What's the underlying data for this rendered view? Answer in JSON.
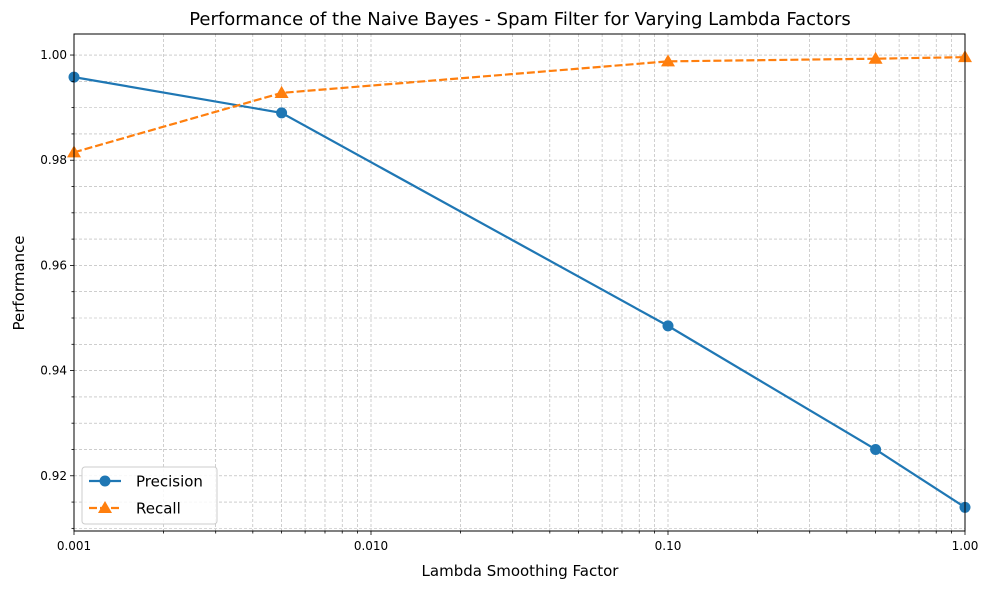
{
  "chart_data": {
    "type": "line",
    "title": "Performance of the Naive Bayes - Spam Filter for Varying Lambda Factors",
    "xlabel": "Lambda Smoothing Factor",
    "ylabel": "Performance",
    "x_scale": "log",
    "x": [
      0.001,
      0.005,
      0.1,
      0.5,
      1.0
    ],
    "xlim": [
      0.001,
      1.0
    ],
    "ylim": [
      0.9095,
      1.004
    ],
    "x_ticks": [
      {
        "value": 0.001,
        "label": "0.001"
      },
      {
        "value": 0.01,
        "label": "0.010"
      },
      {
        "value": 0.1,
        "label": "0.10"
      },
      {
        "value": 1.0,
        "label": "1.00"
      }
    ],
    "y_ticks": [
      {
        "value": 0.92,
        "label": "0.92"
      },
      {
        "value": 0.94,
        "label": "0.94"
      },
      {
        "value": 0.96,
        "label": "0.96"
      },
      {
        "value": 0.98,
        "label": "0.98"
      },
      {
        "value": 1.0,
        "label": "1.00"
      }
    ],
    "grid": true,
    "legend_position": "lower-left",
    "series": [
      {
        "name": "Precision",
        "values": [
          0.9958,
          0.989,
          0.9485,
          0.925,
          0.914
        ],
        "color": "#1f77b4",
        "marker": "circle",
        "line_style": "solid"
      },
      {
        "name": "Recall",
        "values": [
          0.9815,
          0.9928,
          0.9988,
          0.9993,
          0.9996
        ],
        "color": "#ff7f0e",
        "marker": "triangle",
        "line_style": "dashed"
      }
    ]
  }
}
